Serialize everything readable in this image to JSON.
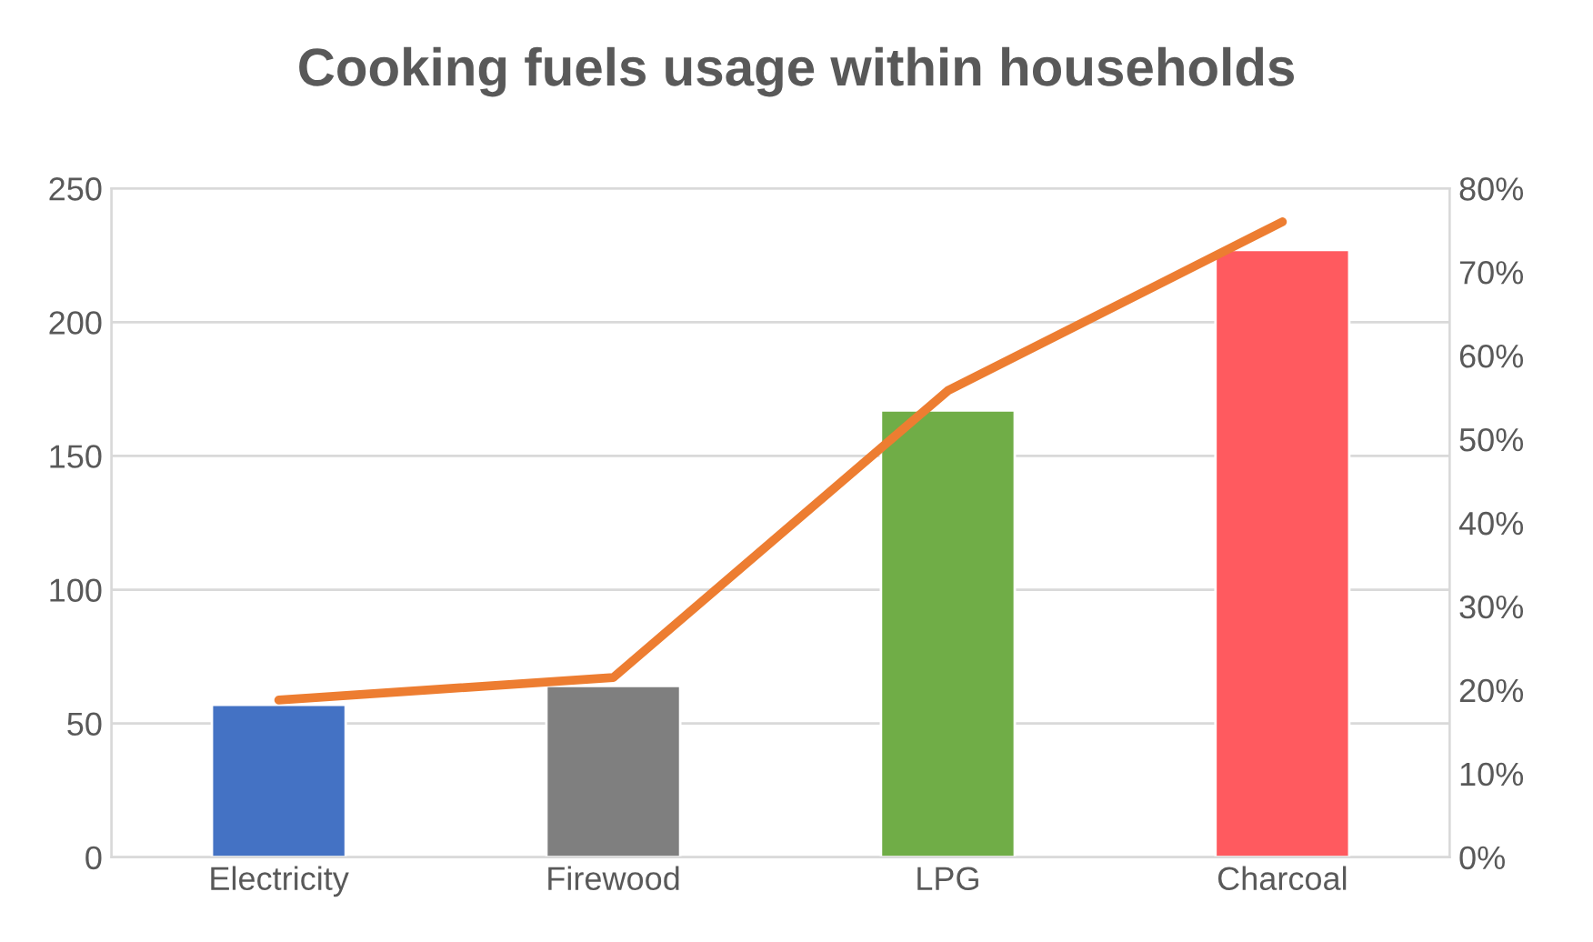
{
  "chart_data": {
    "type": "bar",
    "title": "Cooking fuels usage within households",
    "categories": [
      "Electricity",
      "Firewood",
      "LPG",
      "Charcoal"
    ],
    "series": [
      {
        "colors": [
          "#4472c4",
          "#7f7f7f",
          "#70ad47",
          "#ff5a5f"
        ],
        "values": [
          57,
          64,
          167,
          227
        ]
      },
      {
        "type": "line",
        "axis": "y2",
        "color": "#ed7d31",
        "values": [
          18.8,
          21.5,
          55.8,
          76
        ]
      }
    ],
    "ylim": [
      0,
      250
    ],
    "yticks": [
      0,
      50,
      100,
      150,
      200,
      250
    ],
    "y2lim": [
      0,
      80
    ],
    "y2ticks": [
      {
        "value": 0,
        "label": "0%"
      },
      {
        "value": 10,
        "label": "10%"
      },
      {
        "value": 20,
        "label": "20%"
      },
      {
        "value": 30,
        "label": "30%"
      },
      {
        "value": 40,
        "label": "40%"
      },
      {
        "value": 50,
        "label": "50%"
      },
      {
        "value": 60,
        "label": "60%"
      },
      {
        "value": 70,
        "label": "70%"
      },
      {
        "value": 80,
        "label": "80%"
      }
    ],
    "grid": "y",
    "legend": false
  }
}
